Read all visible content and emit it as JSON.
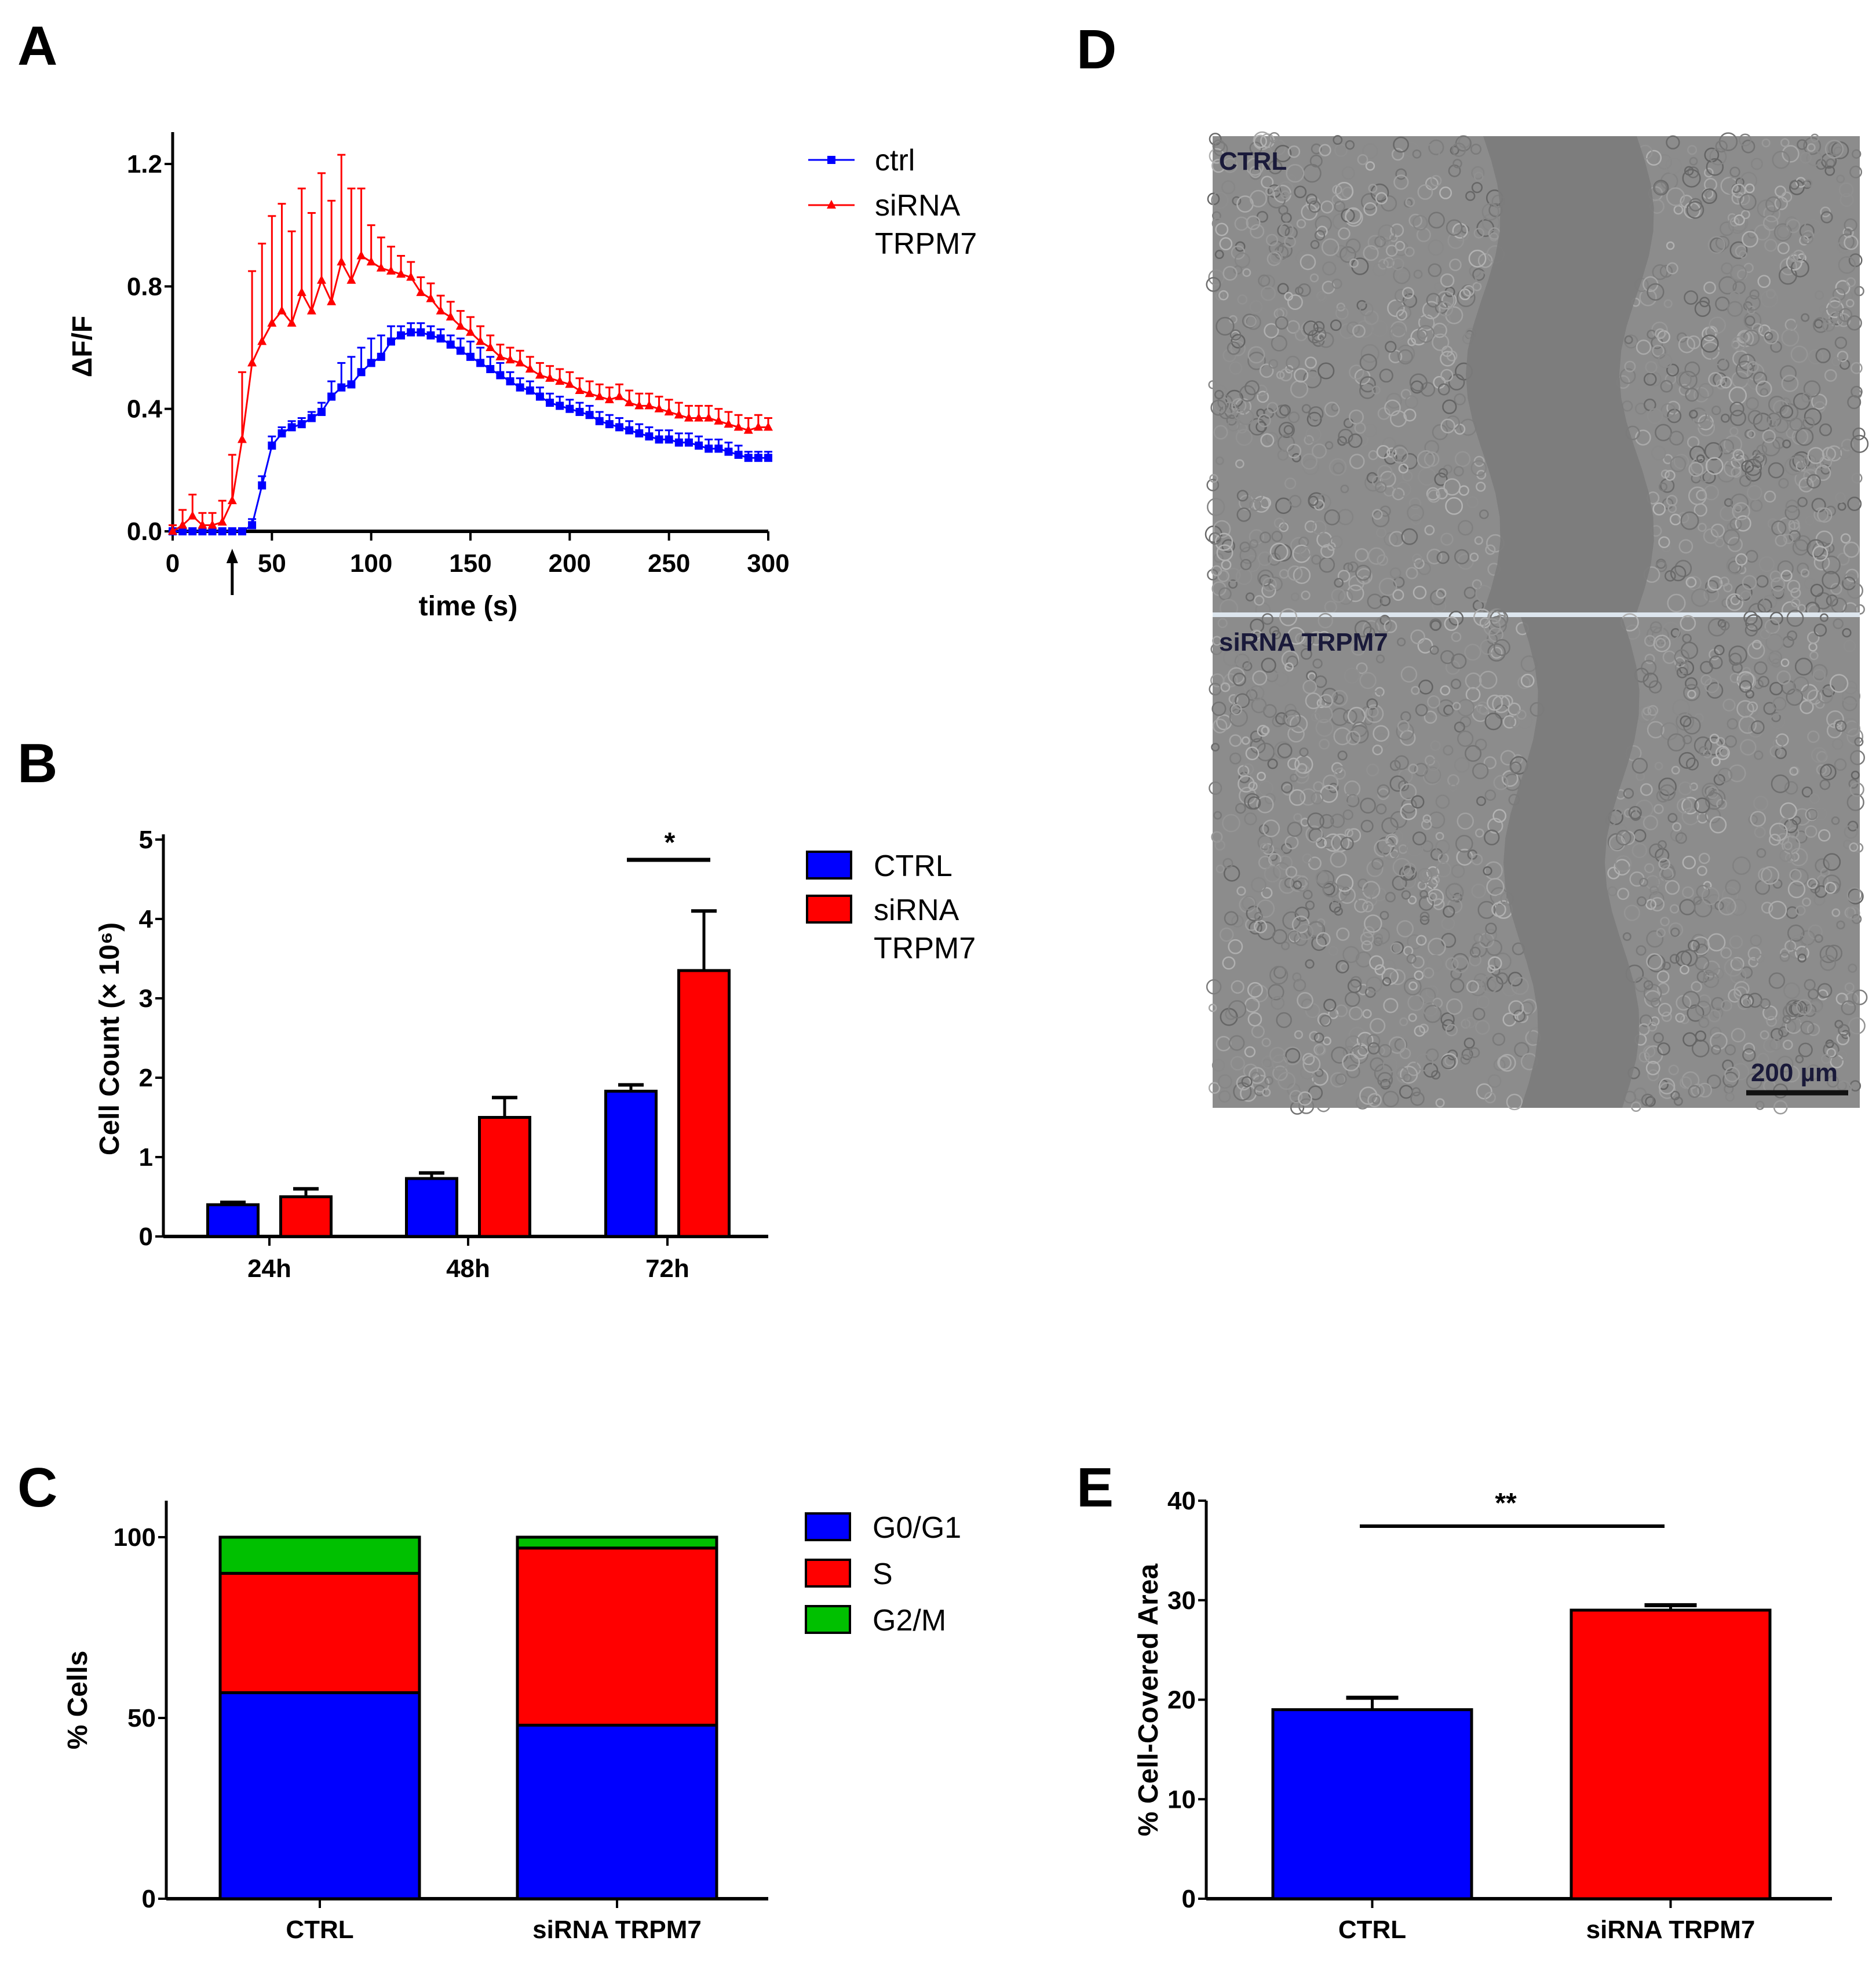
{
  "panels": {
    "A": "A",
    "B": "B",
    "C": "C",
    "D": "D",
    "E": "E"
  },
  "colors": {
    "blue": "#0000ff",
    "red": "#ff0000",
    "green": "#00c000"
  },
  "chart_data": [
    {
      "panel": "A",
      "type": "line",
      "xlabel": "time (s)",
      "ylabel": "ΔF/F",
      "xlim": [
        0,
        300
      ],
      "ylim": [
        0,
        1.2
      ],
      "xticks": [
        "0",
        "50",
        "100",
        "150",
        "200",
        "250",
        "300"
      ],
      "yticks": [
        "0.0",
        "0.4",
        "0.8",
        "1.2"
      ],
      "annotation": "arrow at t≈30 s",
      "legend_placement": "right",
      "x": [
        0,
        5,
        10,
        15,
        20,
        25,
        30,
        35,
        40,
        45,
        50,
        55,
        60,
        65,
        70,
        75,
        80,
        85,
        90,
        95,
        100,
        105,
        110,
        115,
        120,
        125,
        130,
        135,
        140,
        145,
        150,
        155,
        160,
        165,
        170,
        175,
        180,
        185,
        190,
        195,
        200,
        205,
        210,
        215,
        220,
        225,
        230,
        235,
        240,
        245,
        250,
        255,
        260,
        265,
        270,
        275,
        280,
        285,
        290,
        295,
        300
      ],
      "series": [
        {
          "name": "ctrl",
          "color": "#0000ff",
          "marker": "square",
          "values": [
            0,
            0,
            0,
            0,
            0,
            0,
            0,
            0,
            0.02,
            0.15,
            0.28,
            0.32,
            0.34,
            0.35,
            0.37,
            0.39,
            0.44,
            0.47,
            0.48,
            0.52,
            0.55,
            0.57,
            0.62,
            0.64,
            0.65,
            0.65,
            0.64,
            0.63,
            0.61,
            0.59,
            0.57,
            0.55,
            0.53,
            0.51,
            0.49,
            0.47,
            0.46,
            0.44,
            0.42,
            0.41,
            0.4,
            0.39,
            0.38,
            0.36,
            0.35,
            0.34,
            0.33,
            0.32,
            0.31,
            0.3,
            0.3,
            0.29,
            0.29,
            0.28,
            0.27,
            0.27,
            0.26,
            0.25,
            0.24,
            0.24,
            0.24
          ],
          "errors": [
            0.02,
            0.01,
            0.01,
            0.01,
            0.01,
            0.01,
            0.01,
            0.01,
            0.02,
            0.03,
            0.03,
            0.02,
            0.02,
            0.02,
            0.02,
            0.03,
            0.05,
            0.08,
            0.09,
            0.08,
            0.08,
            0.07,
            0.05,
            0.03,
            0.03,
            0.03,
            0.03,
            0.03,
            0.03,
            0.04,
            0.05,
            0.05,
            0.04,
            0.04,
            0.03,
            0.03,
            0.03,
            0.03,
            0.03,
            0.03,
            0.03,
            0.03,
            0.03,
            0.03,
            0.03,
            0.03,
            0.03,
            0.03,
            0.03,
            0.03,
            0.03,
            0.03,
            0.03,
            0.03,
            0.03,
            0.03,
            0.03,
            0.03,
            0.02,
            0.02,
            0.02
          ]
        },
        {
          "name": "siRNA TRPM7",
          "color": "#ff0000",
          "marker": "triangle",
          "values": [
            0,
            0.02,
            0.05,
            0.02,
            0.02,
            0.03,
            0.1,
            0.3,
            0.55,
            0.62,
            0.68,
            0.72,
            0.68,
            0.78,
            0.72,
            0.82,
            0.75,
            0.88,
            0.82,
            0.9,
            0.88,
            0.86,
            0.85,
            0.84,
            0.83,
            0.78,
            0.76,
            0.72,
            0.7,
            0.67,
            0.65,
            0.62,
            0.6,
            0.57,
            0.56,
            0.55,
            0.53,
            0.51,
            0.5,
            0.49,
            0.48,
            0.46,
            0.45,
            0.44,
            0.43,
            0.44,
            0.42,
            0.41,
            0.41,
            0.4,
            0.39,
            0.38,
            0.37,
            0.37,
            0.37,
            0.36,
            0.35,
            0.34,
            0.33,
            0.34,
            0.34
          ],
          "errors": [
            0.02,
            0.05,
            0.07,
            0.04,
            0.04,
            0.07,
            0.15,
            0.22,
            0.3,
            0.32,
            0.35,
            0.35,
            0.3,
            0.34,
            0.32,
            0.35,
            0.33,
            0.35,
            0.3,
            0.22,
            0.12,
            0.1,
            0.08,
            0.06,
            0.05,
            0.05,
            0.05,
            0.05,
            0.05,
            0.05,
            0.05,
            0.05,
            0.04,
            0.04,
            0.04,
            0.04,
            0.04,
            0.04,
            0.04,
            0.04,
            0.04,
            0.04,
            0.04,
            0.04,
            0.04,
            0.04,
            0.04,
            0.04,
            0.04,
            0.04,
            0.04,
            0.04,
            0.04,
            0.04,
            0.04,
            0.04,
            0.04,
            0.04,
            0.04,
            0.04,
            0.03
          ]
        }
      ]
    },
    {
      "panel": "B",
      "type": "bar",
      "ylabel": "Cell Count (× 10⁶)",
      "ylim": [
        0,
        5
      ],
      "yticks": [
        "0",
        "1",
        "2",
        "3",
        "4",
        "5"
      ],
      "categories": [
        "24h",
        "48h",
        "72h"
      ],
      "legend_placement": "right",
      "significance": {
        "label": "*",
        "group": "72h"
      },
      "series": [
        {
          "name": "CTRL",
          "color": "#0000ff",
          "values": [
            0.4,
            0.73,
            1.83
          ],
          "errors": [
            0.03,
            0.07,
            0.08
          ]
        },
        {
          "name": "siRNA TRPM7",
          "color": "#ff0000",
          "values": [
            0.5,
            1.5,
            3.35
          ],
          "errors": [
            0.1,
            0.25,
            0.75
          ]
        }
      ]
    },
    {
      "panel": "C",
      "type": "bar",
      "stacked": true,
      "ylabel": "% Cells",
      "ylim": [
        0,
        110
      ],
      "yticks": [
        "0",
        "50",
        "100"
      ],
      "categories": [
        "CTRL",
        "siRNA TRPM7"
      ],
      "legend_placement": "right",
      "series": [
        {
          "name": "G0/G1",
          "color": "#0000ff",
          "values": [
            57,
            48
          ]
        },
        {
          "name": "S",
          "color": "#ff0000",
          "values": [
            33,
            49
          ]
        },
        {
          "name": "G2/M",
          "color": "#00c000",
          "values": [
            10,
            3
          ]
        }
      ]
    },
    {
      "panel": "E",
      "type": "bar",
      "ylabel": "% Cell-Covered Area",
      "ylim": [
        0,
        40
      ],
      "yticks": [
        "0",
        "10",
        "20",
        "30",
        "40"
      ],
      "categories": [
        "CTRL",
        "siRNA TRPM7"
      ],
      "significance": {
        "label": "**"
      },
      "series": [
        {
          "values": [
            19,
            29
          ],
          "errors": [
            1.2,
            0.5
          ],
          "colors": [
            "#0000ff",
            "#ff0000"
          ]
        }
      ]
    }
  ],
  "micrographs": {
    "top_label": "CTRL",
    "bottom_label": "siRNA TRPM7",
    "scale_bar": "200 µm"
  }
}
